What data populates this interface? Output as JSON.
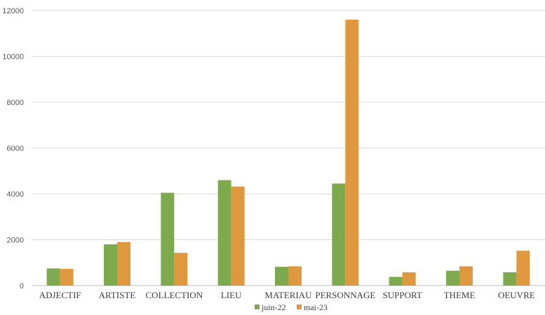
{
  "chart_data": {
    "type": "bar",
    "title": "",
    "xlabel": "",
    "ylabel": "",
    "categories": [
      "ADJECTIF",
      "ARTISTE",
      "COLLECTION",
      "LIEU",
      "MATERIAU",
      "PERSONNAGE",
      "SUPPORT",
      "THEME",
      "OEUVRE"
    ],
    "series": [
      {
        "name": "juin-22",
        "color": "#7daa4c",
        "values": [
          750,
          1800,
          4050,
          4600,
          820,
          4450,
          380,
          650,
          580
        ]
      },
      {
        "name": "mai-23",
        "color": "#e0983f",
        "values": [
          730,
          1900,
          1430,
          4320,
          840,
          11600,
          580,
          840,
          1520
        ]
      }
    ],
    "ylim": [
      0,
      12000
    ],
    "yticks": [
      0,
      2000,
      4000,
      6000,
      8000,
      10000,
      12000
    ],
    "grid": true,
    "legend_position": "bottom"
  }
}
